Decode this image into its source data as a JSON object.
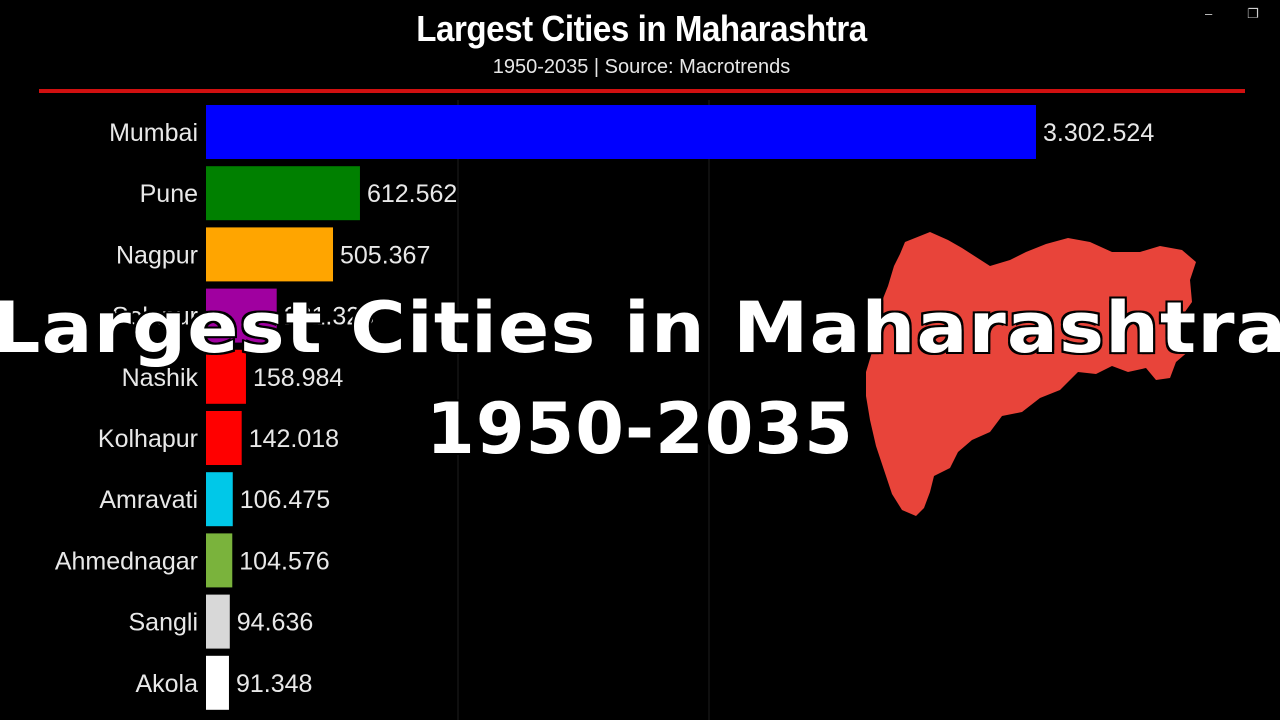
{
  "window_controls": {
    "minimize_icon": "minimize-icon",
    "restore_icon": "restore-icon"
  },
  "overlay": {
    "title": "Largest Cities in Maharashtra",
    "years": "1950-2035"
  },
  "map": {
    "region_color": "#e8443a"
  },
  "chart_data": {
    "type": "bar",
    "orientation": "horizontal",
    "title": "Largest Cities in Maharashtra",
    "subtitle": "1950-2035 | Source: Macrotrends",
    "categories": [
      "Mumbai",
      "Pune",
      "Nagpur",
      "Solapur",
      "Nashik",
      "Kolhapur",
      "Amravati",
      "Ahmednagar",
      "Sangli",
      "Akola"
    ],
    "values": [
      3302524,
      612562,
      505367,
      281323,
      158984,
      142018,
      106475,
      104576,
      94636,
      91348
    ],
    "value_labels": [
      "3.302.524",
      "612.562",
      "505.367",
      "281.323",
      "158.984",
      "142.018",
      "106.475",
      "104.576",
      "94.636",
      "91.348"
    ],
    "colors": [
      "#0000ff",
      "#008000",
      "#ffa500",
      "#a000a0",
      "#ff0000",
      "#ff0000",
      "#00c8e8",
      "#7ab33c",
      "#d8d8d8",
      "#ffffff"
    ],
    "xlim": [
      0,
      3302524
    ],
    "grid": true,
    "accent_line_color": "#d01010"
  }
}
